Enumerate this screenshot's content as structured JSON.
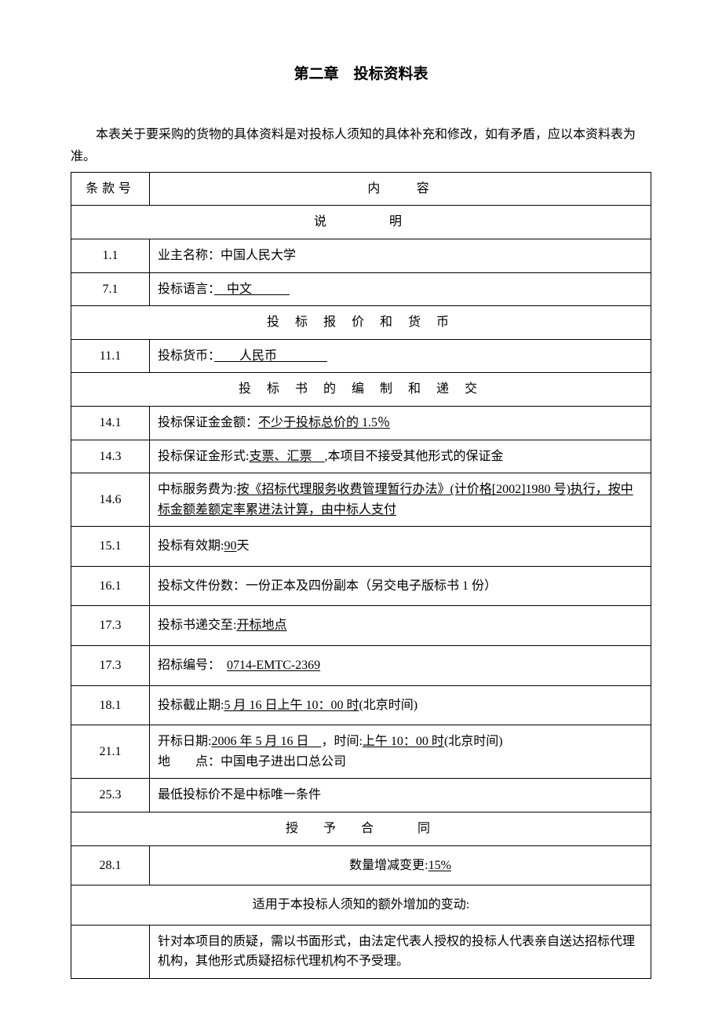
{
  "title": "第二章　投标资料表",
  "intro": "本表关于要采购的货物的具体资料是对投标人须知的具体补充和修改，如有矛盾，应以本资料表为准。",
  "headers": {
    "col_num": "条款号",
    "col_content": "内　　容"
  },
  "sections": {
    "s1": "说　　　明",
    "s2": "投 标 报 价 和 货 币",
    "s3": "投 标 书 的 编 制 和 递 交",
    "s4": "授　予　合　　同",
    "s5": "适用于本投标人须知的额外增加的变动:"
  },
  "rows": {
    "r1_1_num": "1.1",
    "r1_1_label": "业主名称：",
    "r1_1_val": "中国人民大学",
    "r7_1_num": "7.1",
    "r7_1_label": "投标语言：",
    "r7_1_val": "　中文　　　",
    "r11_1_num": "11.1",
    "r11_1_label": "投标货币：",
    "r11_1_val": "　　人民币　　　　",
    "r14_1_num": "14.1",
    "r14_1_label": "投标保证金金额：",
    "r14_1_val": "不少于投标总价的 1.5％",
    "r14_3_num": "14.3",
    "r14_3_a": "投标保证金形式:",
    "r14_3_b": "支票、汇票　",
    "r14_3_c": ",本项目不接受其他形式的保证金",
    "r14_6_num": "14.6",
    "r14_6_a": "中标服务费为:",
    "r14_6_b": "按《招标代理服务收费管理暂行办法》(计价格[2002]1980 号)执行，按中标金额差额定率累进法计算，由中标人支付",
    "r15_1_num": "15.1",
    "r15_1_a": "投标有效期:",
    "r15_1_b": "90",
    "r15_1_c": "天",
    "r16_1_num": "16.1",
    "r16_1_txt": "投标文件份数：一份正本及四份副本（另交电子版标书 1 份）",
    "r17_3a_num": "17.3",
    "r17_3a_a": "投标书递交至:",
    "r17_3a_b": "开标地点",
    "r17_3b_num": "17.3",
    "r17_3b_a": "招标编号：　",
    "r17_3b_b": "0714-EMTC-2369",
    "r18_1_num": "18.1",
    "r18_1_a": "投标截止期:",
    "r18_1_b": "5 月 16 日上午 10：00 时",
    "r18_1_c": "(北京时间)",
    "r21_1_num": "21.1",
    "r21_1_a": "开标日期:",
    "r21_1_b": "2006 年 5 月 16 日　",
    "r21_1_c": "，时间:",
    "r21_1_d": "上午 10：00 时",
    "r21_1_e": "(北京时间)",
    "r21_1_f": "地　　点：中国电子进出口总公司",
    "r25_3_num": "25.3",
    "r25_3_txt": "最低投标价不是中标唯一条件",
    "r28_1_num": "28.1",
    "r28_1_a": "数量增减变更:",
    "r28_1_b": "15%",
    "final_txt": "针对本项目的质疑，需以书面形式，由法定代表人授权的投标人代表亲自送达招标代理机构，其他形式质疑招标代理机构不予受理。"
  }
}
